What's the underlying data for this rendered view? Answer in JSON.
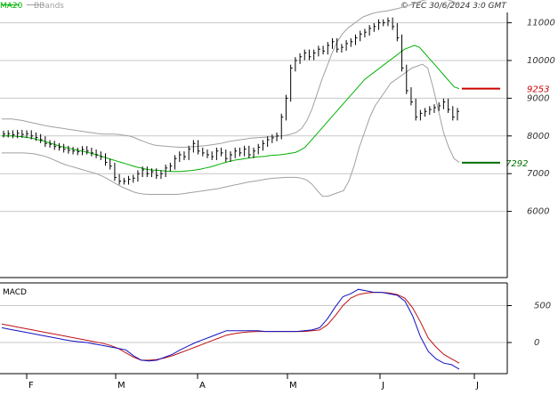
{
  "header": {
    "ma_label": "MA20",
    "bbands_label": "BBands",
    "credit": "© TEC 30/6/2024 3:0 GMT"
  },
  "macd_panel": {
    "title": "MACD"
  },
  "colors": {
    "price_bars": "#000000",
    "ma20": "#00b000",
    "bbands": "#a0a0a0",
    "macd_line": "#1010c0",
    "signal_line": "#c01010",
    "resistance": "#cc0000",
    "support": "#007000",
    "grid": "#c8c8c8",
    "axis_text": "#333333"
  },
  "chart_data": [
    {
      "type": "ohlc",
      "title": "",
      "legend": [
        "MA20",
        "BBands"
      ],
      "x_labels": [
        "F",
        "M",
        "A",
        "M",
        "J",
        "J"
      ],
      "y_ticks": [
        6000,
        7000,
        8000,
        9000,
        10000,
        11000
      ],
      "y_tick_labels": [
        "6000",
        "7000",
        "8000",
        "9000",
        "10000",
        "11000"
      ],
      "ylim": [
        5000,
        12000
      ],
      "grid": true,
      "levels": [
        {
          "label": "9253",
          "value": 9253,
          "color": "#cc0000"
        },
        {
          "label": "7292",
          "value": 7292,
          "color": "#007000"
        }
      ],
      "close": [
        8050,
        8060,
        8030,
        8070,
        8040,
        8060,
        8000,
        7960,
        7900,
        7800,
        7780,
        7720,
        7700,
        7650,
        7620,
        7600,
        7580,
        7640,
        7600,
        7550,
        7500,
        7450,
        7300,
        7200,
        6900,
        6800,
        6800,
        6850,
        6880,
        7000,
        7100,
        7000,
        7050,
        6950,
        7000,
        7150,
        7200,
        7400,
        7500,
        7450,
        7650,
        7800,
        7600,
        7550,
        7500,
        7450,
        7600,
        7550,
        7400,
        7500,
        7600,
        7550,
        7650,
        7500,
        7600,
        7700,
        7800,
        7900,
        7950,
        8000,
        8500,
        9000,
        9800,
        10000,
        10100,
        10200,
        10100,
        10200,
        10300,
        10250,
        10400,
        10500,
        10300,
        10350,
        10450,
        10500,
        10600,
        10700,
        10750,
        10850,
        10900,
        11000,
        11000,
        11050,
        10900,
        10600,
        9800,
        9200,
        8900,
        8500,
        8600,
        8650,
        8700,
        8750,
        8800,
        8900,
        8700,
        8500,
        8650
      ],
      "bb_mid": [
        8000,
        8000,
        8000,
        7990,
        7980,
        7960,
        7940,
        7910,
        7880,
        7840,
        7800,
        7760,
        7720,
        7690,
        7660,
        7630,
        7600,
        7570,
        7540,
        7500,
        7460,
        7420,
        7380,
        7340,
        7300,
        7260,
        7220,
        7180,
        7150,
        7120,
        7100,
        7090,
        7080,
        7070,
        7060,
        7060,
        7060,
        7070,
        7080,
        7100,
        7120,
        7150,
        7180,
        7220,
        7260,
        7300,
        7330,
        7360,
        7380,
        7400,
        7420,
        7440,
        7450,
        7460,
        7480,
        7490,
        7500,
        7520,
        7540,
        7560,
        7620,
        7700,
        7850,
        8000,
        8150,
        8300,
        8450,
        8600,
        8750,
        8900,
        9050,
        9200,
        9350,
        9500,
        9600,
        9700,
        9800,
        9900,
        10000,
        10100,
        10200,
        10300,
        10350,
        10400,
        10350,
        10200,
        10050,
        9900,
        9750,
        9600,
        9450,
        9300,
        9253
      ],
      "bb_upper": [
        8450,
        8450,
        8450,
        8430,
        8410,
        8380,
        8350,
        8320,
        8290,
        8260,
        8240,
        8220,
        8200,
        8180,
        8160,
        8140,
        8120,
        8100,
        8080,
        8060,
        8050,
        8050,
        8050,
        8040,
        8020,
        8000,
        7960,
        7900,
        7850,
        7800,
        7760,
        7740,
        7730,
        7720,
        7710,
        7700,
        7700,
        7710,
        7720,
        7730,
        7740,
        7760,
        7780,
        7800,
        7830,
        7860,
        7880,
        7900,
        7920,
        7940,
        7950,
        7960,
        7970,
        7980,
        7990,
        8000,
        8020,
        8050,
        8100,
        8200,
        8400,
        8700,
        9100,
        9500,
        9850,
        10200,
        10500,
        10700,
        10850,
        10950,
        11050,
        11150,
        11200,
        11250,
        11280,
        11300,
        11320,
        11350,
        11380,
        11420,
        11460,
        11500,
        11550,
        11600,
        11620,
        11650,
        11660,
        11650,
        11600,
        11550,
        11450
      ],
      "bb_lower": [
        7550,
        7550,
        7550,
        7550,
        7550,
        7540,
        7530,
        7500,
        7470,
        7420,
        7360,
        7300,
        7240,
        7200,
        7160,
        7120,
        7080,
        7040,
        7000,
        6940,
        6870,
        6790,
        6710,
        6640,
        6580,
        6520,
        6480,
        6460,
        6450,
        6450,
        6450,
        6450,
        6450,
        6450,
        6460,
        6480,
        6500,
        6520,
        6540,
        6560,
        6580,
        6600,
        6630,
        6660,
        6690,
        6720,
        6750,
        6780,
        6800,
        6820,
        6850,
        6870,
        6880,
        6890,
        6900,
        6900,
        6900,
        6880,
        6830,
        6720,
        6550,
        6400,
        6400,
        6450,
        6500,
        6550,
        6800,
        7200,
        7700,
        8100,
        8500,
        8800,
        9000,
        9200,
        9400,
        9500,
        9600,
        9700,
        9800,
        9850,
        9900,
        9800,
        9300,
        8700,
        8100,
        7700,
        7400,
        7300
      ]
    },
    {
      "type": "line",
      "title": "MACD",
      "y_ticks": [
        0,
        500
      ],
      "y_tick_labels": [
        "0",
        "500"
      ],
      "ylim": [
        -400,
        800
      ],
      "grid": true,
      "macd": [
        200,
        180,
        160,
        140,
        120,
        100,
        80,
        60,
        40,
        20,
        10,
        0,
        -20,
        -40,
        -60,
        -80,
        -100,
        -180,
        -240,
        -250,
        -240,
        -200,
        -160,
        -100,
        -50,
        0,
        40,
        80,
        120,
        160,
        160,
        160,
        160,
        160,
        150,
        150,
        150,
        150,
        150,
        160,
        170,
        200,
        320,
        480,
        620,
        660,
        720,
        700,
        680,
        680,
        660,
        640,
        560,
        360,
        80,
        -120,
        -220,
        -280,
        -300,
        -360
      ],
      "signal": [
        250,
        230,
        210,
        190,
        170,
        150,
        130,
        110,
        90,
        70,
        50,
        30,
        10,
        -10,
        -40,
        -80,
        -140,
        -200,
        -240,
        -240,
        -230,
        -210,
        -180,
        -140,
        -100,
        -60,
        -20,
        20,
        60,
        100,
        120,
        135,
        145,
        150,
        150,
        150,
        150,
        150,
        150,
        150,
        160,
        170,
        240,
        360,
        500,
        600,
        650,
        670,
        680,
        680,
        670,
        650,
        600,
        470,
        280,
        60,
        -60,
        -160,
        -220,
        -280
      ]
    }
  ]
}
